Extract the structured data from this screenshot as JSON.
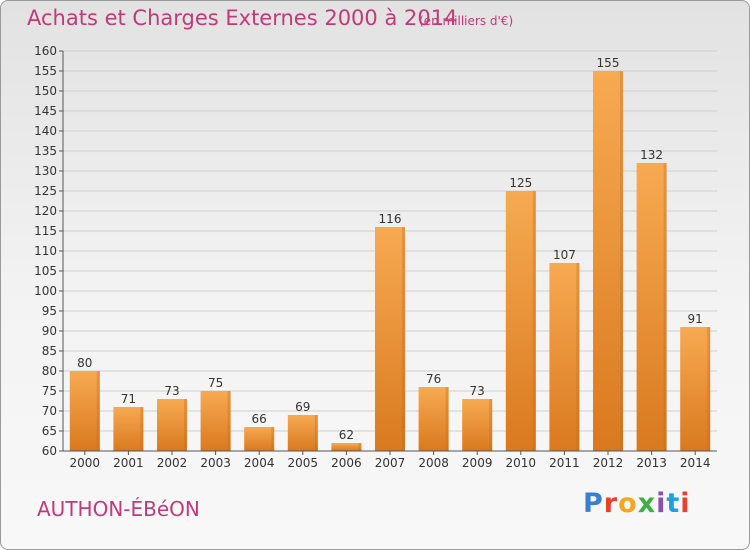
{
  "header": {
    "title": "Achats et Charges Externes 2000 à 2014",
    "unit": "(en milliers d'€)"
  },
  "footer": {
    "place": "AUTHON-ÉBéON",
    "logo_text": "Proxiti",
    "logo_colors": [
      "#3a7fd0",
      "#e8402a",
      "#f5a623",
      "#3fae49",
      "#8a4fb0",
      "#1fa0d8",
      "#e8402a"
    ]
  },
  "colors": {
    "title": "#c03a7a",
    "bar_light": "#f6a64e",
    "bar_dark": "#d87a22",
    "grid": "#cfcfcf"
  },
  "chart_data": {
    "type": "bar",
    "categories": [
      "2000",
      "2001",
      "2002",
      "2003",
      "2004",
      "2005",
      "2006",
      "2007",
      "2008",
      "2009",
      "2010",
      "2011",
      "2012",
      "2013",
      "2014"
    ],
    "values": [
      80,
      71,
      73,
      75,
      66,
      69,
      62,
      116,
      76,
      73,
      125,
      107,
      155,
      132,
      91
    ],
    "ylim": [
      60,
      160
    ],
    "ytick_step": 5,
    "grid": true,
    "xlabel": "",
    "ylabel": ""
  }
}
